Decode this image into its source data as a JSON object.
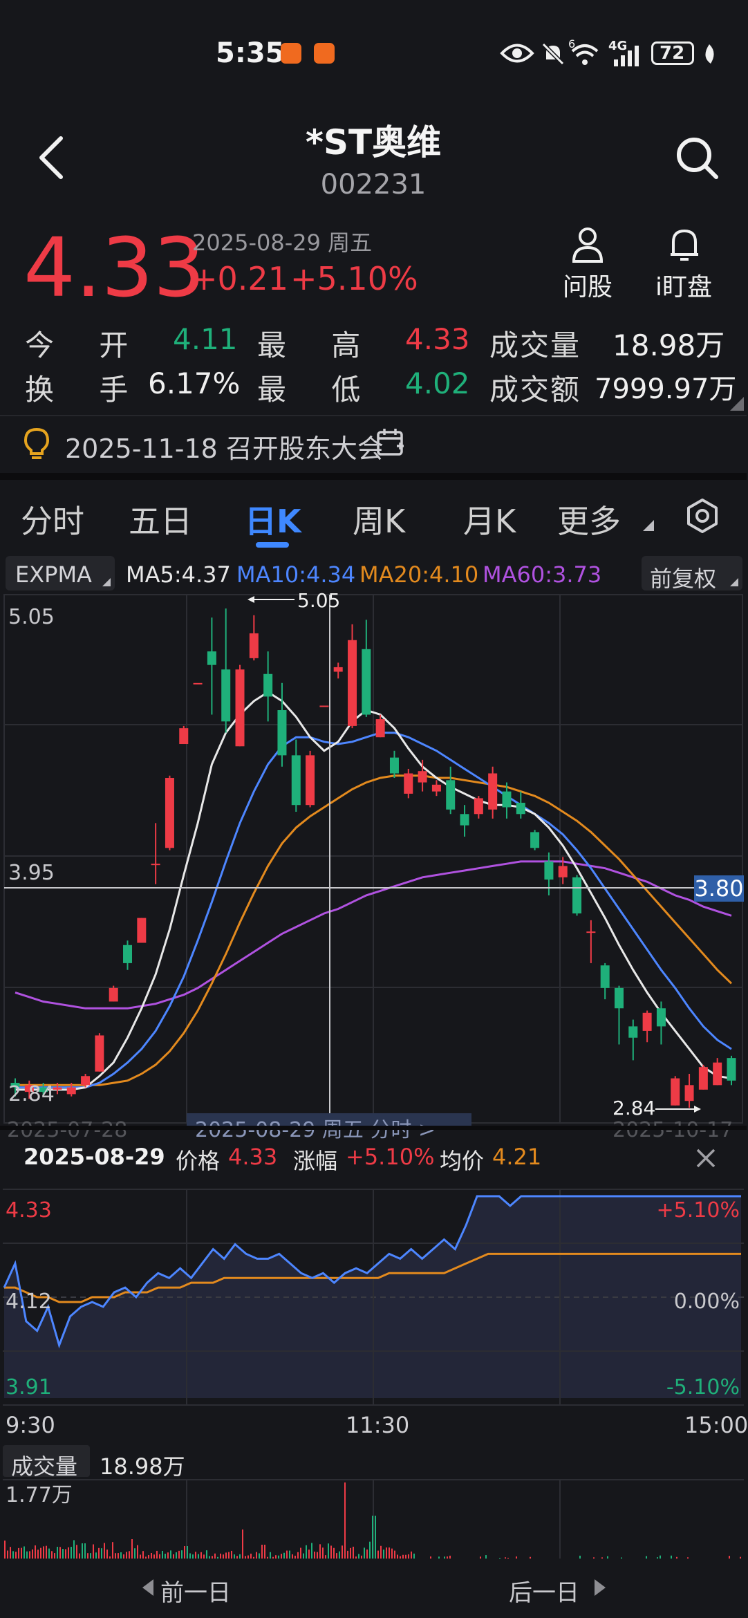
{
  "status_bar": {
    "time": "5:35",
    "battery": "72",
    "signal_label": "4G",
    "wifi_badge": "6"
  },
  "header": {
    "title": "*ST奥维",
    "code": "002231"
  },
  "quote": {
    "price": "4.33",
    "date": "2025-08-29 周五",
    "change": "+0.21",
    "change_pct": "+5.10%",
    "ask_label": "问股",
    "watch_label": "i盯盘"
  },
  "stats": {
    "open_label": "今 开",
    "open_value": "4.11",
    "high_label": "最 高",
    "high_value": "4.33",
    "volume_label": "成交量",
    "volume_value": "18.98万",
    "turnover_label": "换 手",
    "turnover_value": "6.17%",
    "low_label": "最 低",
    "low_value": "4.02",
    "amount_label": "成交额",
    "amount_value": "7999.97万"
  },
  "notice": {
    "text": "2025-11-18 召开股东大会"
  },
  "tabs": [
    "分时",
    "五日",
    "日K",
    "周K",
    "月K",
    "更多"
  ],
  "active_tab": "日K",
  "indicators": {
    "expma_label": "EXPMA",
    "ma5": "MA5:4.37",
    "ma10": "MA10:4.34",
    "ma20": "MA20:4.10",
    "ma60": "MA60:3.73",
    "adjust": "前复权"
  },
  "kline": {
    "y_top_label": "5.05",
    "y_mid_label": "3.95",
    "y_bottom_label": "2.84",
    "crosshair_price": "3.80",
    "max_marker": "5.05",
    "min_marker": "2.84",
    "x_left_label": "2025-07-28",
    "x_center_label": "2025-08-29 周五 分时 >",
    "x_right_label": "2025-10-17",
    "colors": {
      "up": "#ee3b46",
      "down": "#1fb07a",
      "ma5": "#e8e8e8",
      "ma10": "#4d86ff",
      "ma20": "#e38a1e",
      "ma60": "#b052e0"
    }
  },
  "chart_data": {
    "type": "candlestick",
    "ylim": [
      2.84,
      5.05
    ],
    "candles": [
      {
        "o": 2.95,
        "c": 2.93,
        "h": 2.97,
        "l": 2.89
      },
      {
        "o": 2.91,
        "c": 2.94,
        "h": 2.96,
        "l": 2.88
      },
      {
        "o": 2.93,
        "c": 2.91,
        "h": 2.95,
        "l": 2.89
      },
      {
        "o": 2.92,
        "c": 2.93,
        "h": 2.95,
        "l": 2.9
      },
      {
        "o": 2.9,
        "c": 2.93,
        "h": 2.95,
        "l": 2.89
      },
      {
        "o": 2.94,
        "c": 2.98,
        "h": 2.99,
        "l": 2.93
      },
      {
        "o": 3.0,
        "c": 3.16,
        "h": 3.17,
        "l": 3.0
      },
      {
        "o": 3.31,
        "c": 3.37,
        "h": 3.38,
        "l": 3.31
      },
      {
        "o": 3.56,
        "c": 3.48,
        "h": 3.58,
        "l": 3.45
      },
      {
        "o": 3.57,
        "c": 3.68,
        "h": 3.68,
        "l": 3.57
      },
      {
        "o": 3.92,
        "c": 3.92,
        "h": 4.1,
        "l": 3.83
      },
      {
        "o": 3.99,
        "c": 4.3,
        "h": 4.31,
        "l": 3.98
      },
      {
        "o": 4.45,
        "c": 4.52,
        "h": 4.53,
        "l": 4.45
      },
      {
        "o": 4.72,
        "c": 4.72,
        "h": 4.72,
        "l": 4.72
      },
      {
        "o": 4.86,
        "c": 4.8,
        "h": 5.01,
        "l": 4.58
      },
      {
        "o": 4.78,
        "c": 4.55,
        "h": 5.05,
        "l": 4.5
      },
      {
        "o": 4.44,
        "c": 4.78,
        "h": 4.8,
        "l": 4.44
      },
      {
        "o": 4.83,
        "c": 4.94,
        "h": 5.02,
        "l": 4.82
      },
      {
        "o": 4.76,
        "c": 4.66,
        "h": 4.86,
        "l": 4.55
      },
      {
        "o": 4.6,
        "c": 4.4,
        "h": 4.72,
        "l": 4.35
      },
      {
        "o": 4.4,
        "c": 4.18,
        "h": 4.47,
        "l": 4.15
      },
      {
        "o": 4.18,
        "c": 4.4,
        "h": 4.42,
        "l": 4.17
      },
      {
        "o": 4.62,
        "c": 4.62,
        "h": 4.62,
        "l": 4.62
      },
      {
        "o": 4.77,
        "c": 4.79,
        "h": 4.81,
        "l": 4.74
      },
      {
        "o": 4.53,
        "c": 4.91,
        "h": 4.98,
        "l": 4.52
      },
      {
        "o": 4.87,
        "c": 4.58,
        "h": 5.0,
        "l": 4.57
      },
      {
        "o": 4.48,
        "c": 4.56,
        "h": 4.58,
        "l": 4.48
      },
      {
        "o": 4.39,
        "c": 4.32,
        "h": 4.42,
        "l": 4.3
      },
      {
        "o": 4.23,
        "c": 4.32,
        "h": 4.34,
        "l": 4.21
      },
      {
        "o": 4.28,
        "c": 4.33,
        "h": 4.38,
        "l": 4.24
      },
      {
        "o": 4.24,
        "c": 4.27,
        "h": 4.29,
        "l": 4.22
      },
      {
        "o": 4.29,
        "c": 4.16,
        "h": 4.35,
        "l": 4.14
      },
      {
        "o": 4.14,
        "c": 4.09,
        "h": 4.18,
        "l": 4.04
      },
      {
        "o": 4.14,
        "c": 4.21,
        "h": 4.22,
        "l": 4.12
      },
      {
        "o": 4.16,
        "c": 4.32,
        "h": 4.35,
        "l": 4.12
      },
      {
        "o": 4.24,
        "c": 4.17,
        "h": 4.28,
        "l": 4.12
      },
      {
        "o": 4.19,
        "c": 4.14,
        "h": 4.24,
        "l": 4.12
      },
      {
        "o": 4.06,
        "c": 3.99,
        "h": 4.07,
        "l": 3.98
      },
      {
        "o": 3.93,
        "c": 3.85,
        "h": 3.97,
        "l": 3.78
      },
      {
        "o": 3.86,
        "c": 3.91,
        "h": 3.95,
        "l": 3.83
      },
      {
        "o": 3.86,
        "c": 3.7,
        "h": 3.87,
        "l": 3.69
      },
      {
        "o": 3.62,
        "c": 3.62,
        "h": 3.67,
        "l": 3.48
      },
      {
        "o": 3.47,
        "c": 3.37,
        "h": 3.48,
        "l": 3.32
      },
      {
        "o": 3.37,
        "c": 3.28,
        "h": 3.38,
        "l": 3.12
      },
      {
        "o": 3.2,
        "c": 3.15,
        "h": 3.23,
        "l": 3.05
      },
      {
        "o": 3.18,
        "c": 3.26,
        "h": 3.27,
        "l": 3.13
      },
      {
        "o": 3.28,
        "c": 3.2,
        "h": 3.31,
        "l": 3.12
      },
      {
        "o": 2.85,
        "c": 2.97,
        "h": 2.98,
        "l": 2.85
      },
      {
        "o": 2.87,
        "c": 2.94,
        "h": 2.99,
        "l": 2.84
      },
      {
        "o": 2.92,
        "c": 3.02,
        "h": 3.03,
        "l": 2.92
      },
      {
        "o": 2.94,
        "c": 3.04,
        "h": 3.06,
        "l": 2.94
      },
      {
        "o": 3.06,
        "c": 2.96,
        "h": 3.07,
        "l": 2.94
      }
    ],
    "ma5": [
      2.92,
      2.92,
      2.92,
      2.92,
      2.92,
      2.93,
      2.98,
      3.04,
      3.15,
      3.28,
      3.43,
      3.63,
      3.87,
      4.1,
      4.36,
      4.5,
      4.58,
      4.64,
      4.68,
      4.64,
      4.57,
      4.48,
      4.42,
      4.46,
      4.55,
      4.6,
      4.58,
      4.52,
      4.43,
      4.35,
      4.3,
      4.26,
      4.23,
      4.2,
      4.18,
      4.18,
      4.17,
      4.14,
      4.08,
      4.0,
      3.9,
      3.79,
      3.68,
      3.56,
      3.45,
      3.35,
      3.26,
      3.18,
      3.1,
      3.02,
      2.98,
      2.97
    ],
    "ma10": [
      2.93,
      2.93,
      2.93,
      2.93,
      2.93,
      2.93,
      2.95,
      2.99,
      3.04,
      3.1,
      3.18,
      3.29,
      3.42,
      3.58,
      3.75,
      3.93,
      4.1,
      4.24,
      4.36,
      4.44,
      4.48,
      4.48,
      4.46,
      4.45,
      4.46,
      4.48,
      4.5,
      4.5,
      4.48,
      4.45,
      4.42,
      4.38,
      4.34,
      4.3,
      4.26,
      4.22,
      4.18,
      4.14,
      4.1,
      4.05,
      3.98,
      3.9,
      3.81,
      3.72,
      3.63,
      3.54,
      3.45,
      3.37,
      3.28,
      3.2,
      3.14,
      3.1
    ],
    "ma20": [
      2.94,
      2.94,
      2.94,
      2.94,
      2.94,
      2.94,
      2.94,
      2.95,
      2.96,
      2.99,
      3.03,
      3.09,
      3.17,
      3.27,
      3.39,
      3.52,
      3.66,
      3.79,
      3.91,
      4.01,
      4.08,
      4.13,
      4.17,
      4.21,
      4.25,
      4.28,
      4.3,
      4.31,
      4.31,
      4.31,
      4.3,
      4.3,
      4.29,
      4.28,
      4.27,
      4.26,
      4.24,
      4.22,
      4.19,
      4.15,
      4.11,
      4.06,
      4.0,
      3.94,
      3.87,
      3.8,
      3.73,
      3.66,
      3.59,
      3.52,
      3.45,
      3.39
    ],
    "ma60": [
      3.35,
      3.33,
      3.31,
      3.3,
      3.29,
      3.28,
      3.28,
      3.28,
      3.28,
      3.29,
      3.3,
      3.32,
      3.34,
      3.37,
      3.41,
      3.45,
      3.49,
      3.53,
      3.57,
      3.61,
      3.64,
      3.67,
      3.7,
      3.72,
      3.75,
      3.78,
      3.8,
      3.82,
      3.84,
      3.86,
      3.87,
      3.88,
      3.89,
      3.9,
      3.91,
      3.92,
      3.93,
      3.93,
      3.93,
      3.93,
      3.92,
      3.91,
      3.9,
      3.88,
      3.86,
      3.84,
      3.81,
      3.78,
      3.76,
      3.73,
      3.71,
      3.69
    ]
  },
  "intraday": {
    "date": "2025-08-29",
    "price_label": "价格",
    "price_value": "4.33",
    "change_label": "涨幅",
    "change_value": "+5.10%",
    "avg_label": "均价",
    "avg_value": "4.21",
    "y_top": "4.33",
    "y_mid": "4.12",
    "y_bottom": "3.91",
    "pct_top": "+5.10%",
    "pct_mid": "0.00%",
    "pct_bottom": "-5.10%",
    "t_start": "9:30",
    "t_mid": "11:30",
    "t_end": "15:00",
    "volume_label": "成交量",
    "volume_value": "18.98万",
    "volume_max": "1.77万",
    "ylim": [
      3.91,
      4.33
    ],
    "price_series": [
      4.14,
      4.19,
      4.07,
      4.05,
      4.1,
      4.02,
      4.08,
      4.1,
      4.11,
      4.1,
      4.13,
      4.14,
      4.12,
      4.15,
      4.17,
      4.16,
      4.18,
      4.16,
      4.19,
      4.22,
      4.2,
      4.23,
      4.21,
      4.2,
      4.2,
      4.21,
      4.19,
      4.17,
      4.16,
      4.17,
      4.15,
      4.17,
      4.18,
      4.17,
      4.19,
      4.21,
      4.2,
      4.22,
      4.2,
      4.22,
      4.24,
      4.22,
      4.27,
      4.33,
      4.33,
      4.33,
      4.31,
      4.33,
      4.33,
      4.33,
      4.33,
      4.33,
      4.33,
      4.33,
      4.33,
      4.33,
      4.33,
      4.33,
      4.33,
      4.33,
      4.33,
      4.33,
      4.33,
      4.33,
      4.33,
      4.33,
      4.33,
      4.33
    ],
    "avg_series": [
      4.14,
      4.14,
      4.13,
      4.12,
      4.12,
      4.11,
      4.11,
      4.11,
      4.12,
      4.12,
      4.12,
      4.13,
      4.13,
      4.13,
      4.14,
      4.14,
      4.14,
      4.15,
      4.15,
      4.15,
      4.16,
      4.16,
      4.16,
      4.16,
      4.16,
      4.16,
      4.16,
      4.16,
      4.16,
      4.16,
      4.16,
      4.16,
      4.16,
      4.16,
      4.16,
      4.17,
      4.17,
      4.17,
      4.17,
      4.17,
      4.17,
      4.18,
      4.19,
      4.2,
      4.21,
      4.21,
      4.21,
      4.21,
      4.21,
      4.21,
      4.21,
      4.21,
      4.21,
      4.21,
      4.21,
      4.21,
      4.21,
      4.21,
      4.21,
      4.21,
      4.21,
      4.21,
      4.21,
      4.21,
      4.21,
      4.21,
      4.21,
      4.21
    ]
  },
  "footer": {
    "prev_day": "前一日",
    "next_day": "后一日"
  }
}
